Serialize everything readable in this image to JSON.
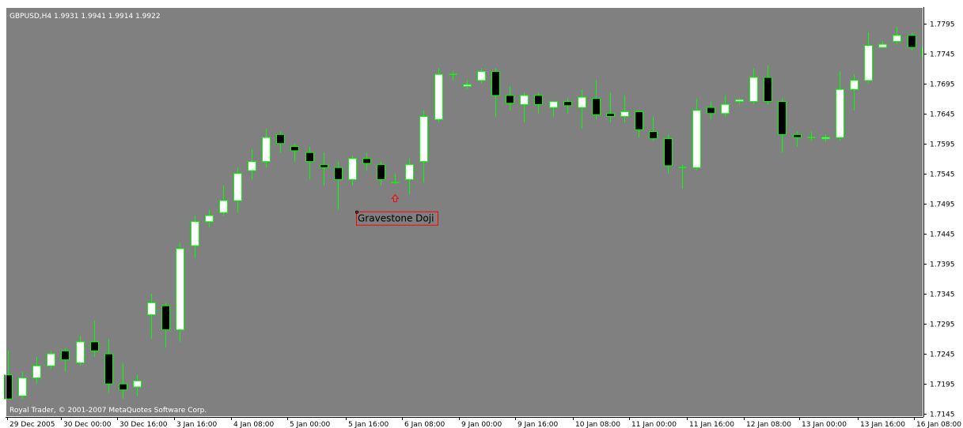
{
  "header": {
    "symbol_info": "GBPUSD,H4  1.9931 1.9941 1.9914 1.9922"
  },
  "footer": {
    "copyright": "Royal Trader, © 2001-2007 MetaQuotes Software Corp."
  },
  "annotation": {
    "label": "Gravestone Doji",
    "arrow_color": "#ff0000",
    "box_color": "#ff0000"
  },
  "colors": {
    "background": "#808080",
    "bull_body": "#ffffff",
    "bear_body": "#000000",
    "wick": "#00ff00",
    "frame": "#ffffff"
  },
  "chart_data": {
    "type": "candlestick",
    "ylim": [
      1.714,
      1.7822
    ],
    "y_ticks": [
      "1.7795",
      "1.7745",
      "1.7695",
      "1.7645",
      "1.7595",
      "1.7545",
      "1.7495",
      "1.7445",
      "1.7395",
      "1.7345",
      "1.7295",
      "1.7245",
      "1.7195",
      "1.7145"
    ],
    "x_ticks": [
      "29 Dec 2005",
      "30 Dec 00:00",
      "30 Dec 16:00",
      "3 Jan 16:00",
      "4 Jan 08:00",
      "5 Jan 00:00",
      "5 Jan 16:00",
      "6 Jan 08:00",
      "9 Jan 00:00",
      "9 Jan 16:00",
      "10 Jan 08:00",
      "11 Jan 00:00",
      "11 Jan 16:00",
      "12 Jan 08:00",
      "13 Jan 00:00",
      "13 Jan 16:00",
      "16 Jan 08:00"
    ],
    "annotated_candle_index": 27,
    "candles": [
      {
        "o": 1.721,
        "h": 1.725,
        "l": 1.717,
        "c": 1.717
      },
      {
        "o": 1.7175,
        "h": 1.7215,
        "l": 1.717,
        "c": 1.7205
      },
      {
        "o": 1.7205,
        "h": 1.724,
        "l": 1.7195,
        "c": 1.7225
      },
      {
        "o": 1.7225,
        "h": 1.725,
        "l": 1.722,
        "c": 1.7245
      },
      {
        "o": 1.725,
        "h": 1.7255,
        "l": 1.7215,
        "c": 1.7235
      },
      {
        "o": 1.723,
        "h": 1.7275,
        "l": 1.7225,
        "c": 1.7265
      },
      {
        "o": 1.7265,
        "h": 1.73,
        "l": 1.724,
        "c": 1.725
      },
      {
        "o": 1.7245,
        "h": 1.727,
        "l": 1.718,
        "c": 1.7195
      },
      {
        "o": 1.7195,
        "h": 1.723,
        "l": 1.717,
        "c": 1.7185
      },
      {
        "o": 1.719,
        "h": 1.721,
        "l": 1.7175,
        "c": 1.72
      },
      {
        "o": 1.731,
        "h": 1.7345,
        "l": 1.727,
        "c": 1.733
      },
      {
        "o": 1.7325,
        "h": 1.733,
        "l": 1.7255,
        "c": 1.7285
      },
      {
        "o": 1.7285,
        "h": 1.743,
        "l": 1.7265,
        "c": 1.742
      },
      {
        "o": 1.7425,
        "h": 1.7475,
        "l": 1.7405,
        "c": 1.7465
      },
      {
        "o": 1.7465,
        "h": 1.7485,
        "l": 1.7455,
        "c": 1.7475
      },
      {
        "o": 1.748,
        "h": 1.7525,
        "l": 1.7475,
        "c": 1.75
      },
      {
        "o": 1.75,
        "h": 1.7555,
        "l": 1.748,
        "c": 1.7545
      },
      {
        "o": 1.755,
        "h": 1.7585,
        "l": 1.7535,
        "c": 1.7565
      },
      {
        "o": 1.7565,
        "h": 1.762,
        "l": 1.7555,
        "c": 1.7605
      },
      {
        "o": 1.761,
        "h": 1.7615,
        "l": 1.758,
        "c": 1.7595
      },
      {
        "o": 1.759,
        "h": 1.7595,
        "l": 1.7565,
        "c": 1.7583
      },
      {
        "o": 1.758,
        "h": 1.759,
        "l": 1.7535,
        "c": 1.7565
      },
      {
        "o": 1.756,
        "h": 1.758,
        "l": 1.7525,
        "c": 1.7555
      },
      {
        "o": 1.7555,
        "h": 1.7565,
        "l": 1.7485,
        "c": 1.7535
      },
      {
        "o": 1.7535,
        "h": 1.7575,
        "l": 1.7525,
        "c": 1.757
      },
      {
        "o": 1.757,
        "h": 1.758,
        "l": 1.755,
        "c": 1.7562
      },
      {
        "o": 1.756,
        "h": 1.7565,
        "l": 1.7525,
        "c": 1.7535
      },
      {
        "o": 1.753,
        "h": 1.7545,
        "l": 1.7528,
        "c": 1.753
      },
      {
        "o": 1.7535,
        "h": 1.757,
        "l": 1.751,
        "c": 1.756
      },
      {
        "o": 1.7565,
        "h": 1.765,
        "l": 1.753,
        "c": 1.764
      },
      {
        "o": 1.7635,
        "h": 1.772,
        "l": 1.763,
        "c": 1.771
      },
      {
        "o": 1.771,
        "h": 1.7715,
        "l": 1.77,
        "c": 1.771
      },
      {
        "o": 1.769,
        "h": 1.77,
        "l": 1.7685,
        "c": 1.7693
      },
      {
        "o": 1.77,
        "h": 1.772,
        "l": 1.7695,
        "c": 1.7715
      },
      {
        "o": 1.7715,
        "h": 1.772,
        "l": 1.764,
        "c": 1.7675
      },
      {
        "o": 1.7675,
        "h": 1.769,
        "l": 1.765,
        "c": 1.7662
      },
      {
        "o": 1.766,
        "h": 1.768,
        "l": 1.763,
        "c": 1.7675
      },
      {
        "o": 1.7675,
        "h": 1.768,
        "l": 1.7645,
        "c": 1.766
      },
      {
        "o": 1.7655,
        "h": 1.7665,
        "l": 1.764,
        "c": 1.7665
      },
      {
        "o": 1.7665,
        "h": 1.767,
        "l": 1.7645,
        "c": 1.7658
      },
      {
        "o": 1.7655,
        "h": 1.7685,
        "l": 1.762,
        "c": 1.7672
      },
      {
        "o": 1.767,
        "h": 1.77,
        "l": 1.7635,
        "c": 1.7643
      },
      {
        "o": 1.7645,
        "h": 1.768,
        "l": 1.763,
        "c": 1.764
      },
      {
        "o": 1.764,
        "h": 1.7675,
        "l": 1.763,
        "c": 1.7648
      },
      {
        "o": 1.7648,
        "h": 1.765,
        "l": 1.7605,
        "c": 1.7618
      },
      {
        "o": 1.7615,
        "h": 1.764,
        "l": 1.76,
        "c": 1.7603
      },
      {
        "o": 1.7603,
        "h": 1.761,
        "l": 1.7545,
        "c": 1.7558
      },
      {
        "o": 1.7555,
        "h": 1.756,
        "l": 1.752,
        "c": 1.7555
      },
      {
        "o": 1.7555,
        "h": 1.767,
        "l": 1.755,
        "c": 1.765
      },
      {
        "o": 1.7655,
        "h": 1.7665,
        "l": 1.7635,
        "c": 1.7645
      },
      {
        "o": 1.7645,
        "h": 1.7675,
        "l": 1.764,
        "c": 1.766
      },
      {
        "o": 1.7665,
        "h": 1.767,
        "l": 1.766,
        "c": 1.7668
      },
      {
        "o": 1.7665,
        "h": 1.772,
        "l": 1.766,
        "c": 1.7705
      },
      {
        "o": 1.7705,
        "h": 1.7725,
        "l": 1.766,
        "c": 1.7665
      },
      {
        "o": 1.7665,
        "h": 1.767,
        "l": 1.758,
        "c": 1.761
      },
      {
        "o": 1.761,
        "h": 1.7615,
        "l": 1.759,
        "c": 1.7605
      },
      {
        "o": 1.7605,
        "h": 1.7615,
        "l": 1.76,
        "c": 1.7605
      },
      {
        "o": 1.7603,
        "h": 1.761,
        "l": 1.7598,
        "c": 1.7605
      },
      {
        "o": 1.7605,
        "h": 1.7715,
        "l": 1.76,
        "c": 1.7685
      },
      {
        "o": 1.7685,
        "h": 1.771,
        "l": 1.765,
        "c": 1.77
      },
      {
        "o": 1.77,
        "h": 1.778,
        "l": 1.7695,
        "c": 1.7758
      },
      {
        "o": 1.7755,
        "h": 1.7765,
        "l": 1.7755,
        "c": 1.776
      },
      {
        "o": 1.7765,
        "h": 1.779,
        "l": 1.776,
        "c": 1.7775
      },
      {
        "o": 1.7775,
        "h": 1.778,
        "l": 1.775,
        "c": 1.7755
      },
      {
        "o": 1.7755,
        "h": 1.7765,
        "l": 1.773,
        "c": 1.774
      }
    ]
  }
}
